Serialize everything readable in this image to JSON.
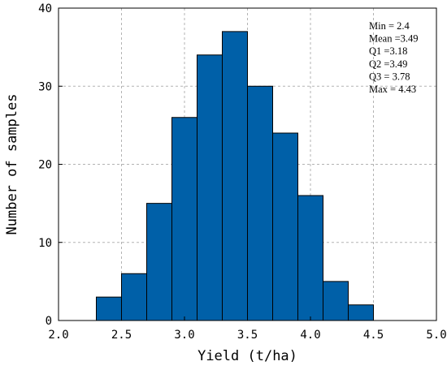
{
  "chart_data": {
    "type": "bar",
    "subtype": "histogram",
    "bin_edges": [
      2.3,
      2.5,
      2.7,
      2.9,
      3.1,
      3.3,
      3.5,
      3.7,
      3.9,
      4.1,
      4.3,
      4.5
    ],
    "values": [
      3,
      6,
      15,
      26,
      34,
      37,
      30,
      24,
      16,
      5,
      2
    ],
    "xlabel": "Yield (t/ha)",
    "ylabel": "Number of samples",
    "xlim": [
      2.0,
      5.0
    ],
    "ylim": [
      0,
      40
    ],
    "xticks": [
      "2.0",
      "2.5",
      "3.0",
      "3.5",
      "4.0",
      "4.5",
      "5.0"
    ],
    "yticks": [
      "0",
      "10",
      "20",
      "30",
      "40"
    ],
    "grid": true,
    "bar_color": "#0060A8",
    "bar_edge_color": "#000000",
    "stats": [
      "Min = 2.4",
      "Mean =3.49",
      "Q1 =3.18",
      "Q2 =3.49",
      "Q3 = 3.78",
      "Max = 4.43"
    ]
  }
}
